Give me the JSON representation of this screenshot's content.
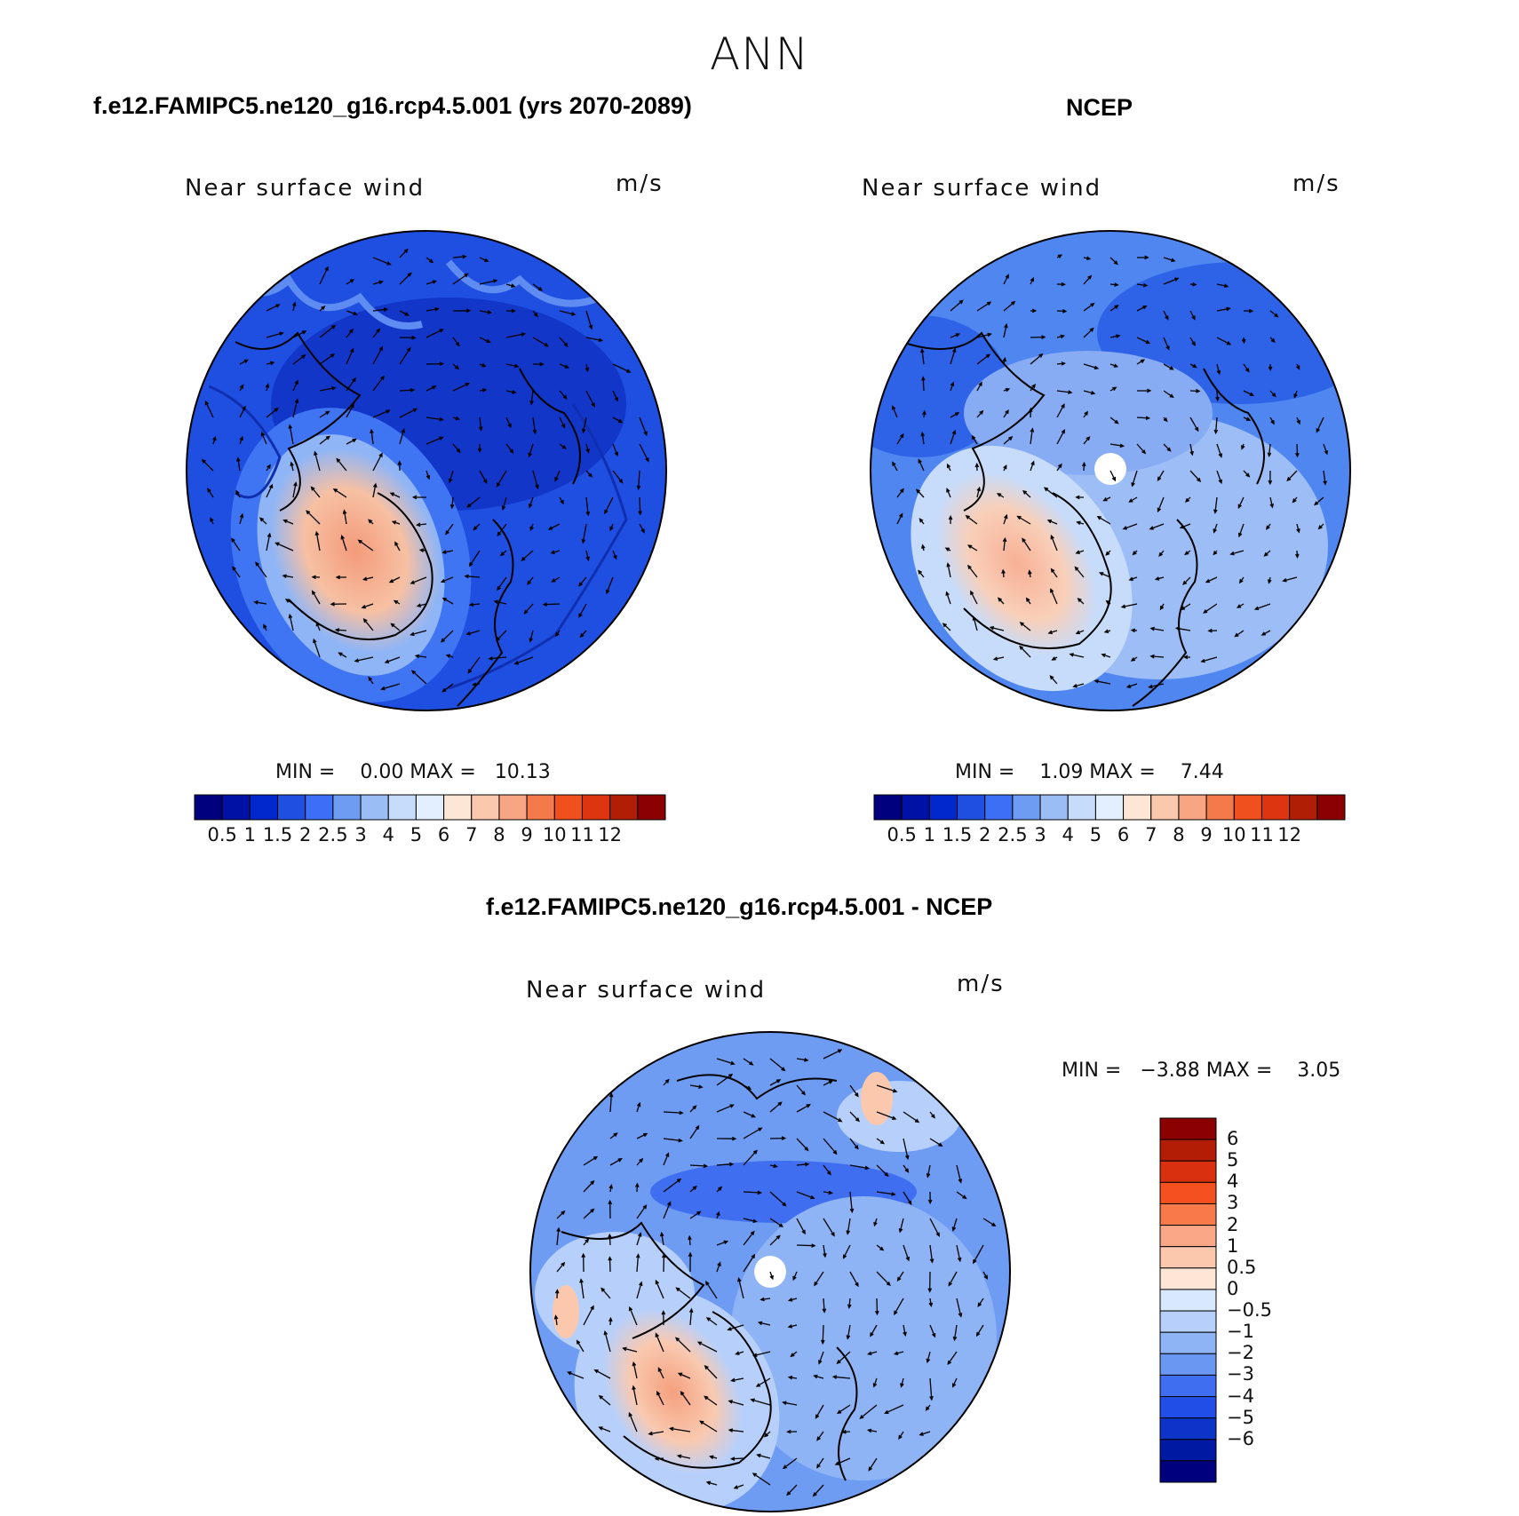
{
  "figure": {
    "title": "ANN"
  },
  "panels": [
    {
      "title": "f.e12.FAMIPC5.ne120_g16.rcp4.5.001 (yrs 2070-2089)",
      "variable": "Near surface wind",
      "units": "m/s",
      "stats": "MIN =    0.00 MAX =   10.13",
      "colors": {
        "background": "#1f4fe0",
        "ring": "#3c6ff5",
        "hotspot": "#f7b89c"
      }
    },
    {
      "title": "NCEP",
      "variable": "Near surface wind",
      "units": "m/s",
      "stats": "MIN =    1.09 MAX =    7.44",
      "colors": {
        "background": "#4f86f0",
        "ring": "#8fb2f5",
        "hotspot": "#f7c4ab"
      }
    },
    {
      "title": "f.e12.FAMIPC5.ne120_g16.rcp4.5.001 - NCEP",
      "variable": "Near surface wind",
      "units": "m/s",
      "stats": "MIN =   −3.88 MAX =    3.05",
      "colors": {
        "background": "#6f9cf3",
        "ring": "#b3cdf8",
        "hotspot": "#f7bfa6"
      }
    }
  ],
  "colorbar_abs": {
    "colors": [
      "#00007f",
      "#0012a6",
      "#0028cc",
      "#1f4fe0",
      "#3c6ff5",
      "#6f9cf3",
      "#9bbdf6",
      "#c7dcfa",
      "#e3efff",
      "#fde6d6",
      "#f9c8ad",
      "#f7a583",
      "#f57a4b",
      "#f04f1e",
      "#dc3510",
      "#b01e05",
      "#8b0000"
    ],
    "labels": [
      "0.5",
      "1",
      "1.5",
      "2",
      "2.5",
      "3",
      "4",
      "5",
      "6",
      "7",
      "8",
      "9",
      "10",
      "11",
      "12"
    ]
  },
  "colorbar_diff": {
    "colors": [
      "#8b0000",
      "#b31c05",
      "#d9300f",
      "#f5501f",
      "#f87a4a",
      "#f9a786",
      "#fbc8ae",
      "#fde6d6",
      "#d8e8ff",
      "#b7d0fb",
      "#8eb4f6",
      "#6a97f2",
      "#3f6ff0",
      "#214ee6",
      "#0c34c8",
      "#0019a3",
      "#00007f"
    ],
    "labels": [
      "6",
      "5",
      "4",
      "3",
      "2",
      "1",
      "0.5",
      "0",
      "−0.5",
      "−1",
      "−2",
      "−3",
      "−4",
      "−5",
      "−6"
    ]
  }
}
